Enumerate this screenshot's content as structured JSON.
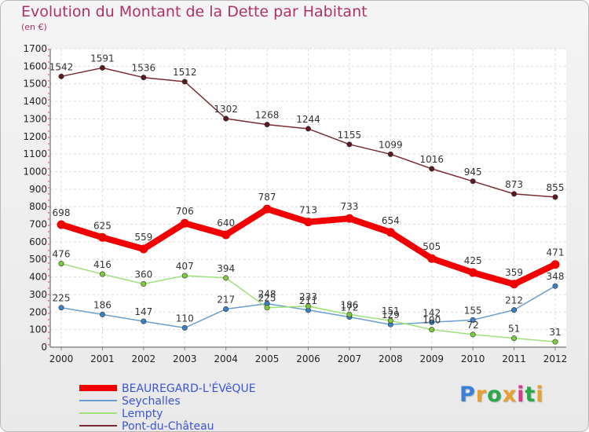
{
  "title": "Evolution du Montant de la Dette par Habitant",
  "subtitle": "(en €)",
  "logo": {
    "text": "Proxiti",
    "colors": [
      "#3a7fd8",
      "#e8a02a",
      "#2aa84a",
      "#e8a02a",
      "#d83a8a",
      "#2aa84a",
      "#e8a02a"
    ]
  },
  "chart_data": {
    "type": "line",
    "title": "Evolution du Montant de la Dette par Habitant",
    "subtitle": "(en €)",
    "xlabel": "",
    "ylabel": "",
    "ylim": [
      0,
      1700
    ],
    "yticks": [
      0,
      100,
      200,
      300,
      400,
      500,
      600,
      700,
      800,
      900,
      1000,
      1100,
      1200,
      1300,
      1400,
      1500,
      1600,
      1700
    ],
    "grid": true,
    "legend_position": "bottom-left",
    "x": [
      "2000",
      "2001",
      "2002",
      "2003",
      "2004",
      "2005",
      "2006",
      "2007",
      "2008",
      "2009",
      "2010",
      "2011",
      "2012"
    ],
    "series": [
      {
        "name": "Pont-du-Château",
        "color": "#7a2b32",
        "marker_color": "#5a1a20",
        "values": [
          1542,
          1591,
          1536,
          1512,
          1302,
          1268,
          1244,
          1155,
          1099,
          1016,
          945,
          873,
          855
        ]
      },
      {
        "name": "Seychalles",
        "color": "#6b9ed0",
        "marker_color": "#3a7fc8",
        "values": [
          225,
          186,
          147,
          110,
          217,
          248,
          211,
          172,
          129,
          142,
          155,
          212,
          348
        ]
      },
      {
        "name": "Lempty",
        "color": "#9ee07a",
        "marker_color": "#7ccc3a",
        "values": [
          476,
          416,
          360,
          407,
          394,
          225,
          233,
          186,
          151,
          100,
          72,
          51,
          31
        ]
      },
      {
        "name": "BEAUREGARD-L'ÉVêQUE",
        "color": "#f00000",
        "marker_color": "#f00000",
        "values": [
          698,
          625,
          559,
          706,
          640,
          787,
          713,
          733,
          654,
          505,
          425,
          359,
          471
        ]
      }
    ],
    "legend_order": [
      "BEAUREGARD-L'ÉVêQUE",
      "Seychalles",
      "Lempty",
      "Pont-du-Château"
    ]
  }
}
